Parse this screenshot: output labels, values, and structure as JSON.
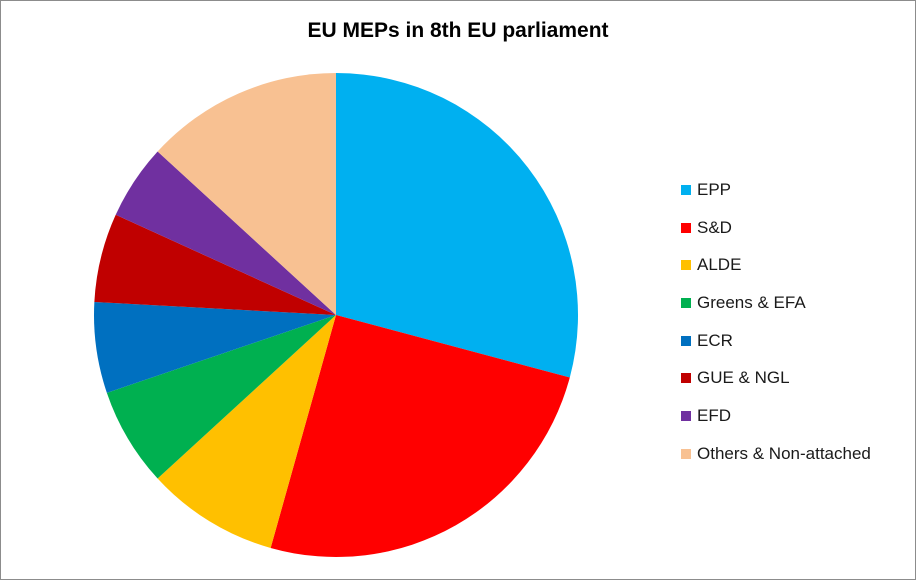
{
  "chart_data": {
    "type": "pie",
    "title": "EU MEPs in 8th EU parliament",
    "legend_position": "right",
    "slices": [
      {
        "label": "EPP",
        "value": 221,
        "color": "#00b0f0"
      },
      {
        "label": "S&D",
        "value": 191,
        "color": "#ff0000"
      },
      {
        "label": "ALDE",
        "value": 67,
        "color": "#ffc000"
      },
      {
        "label": "Greens & EFA",
        "value": 50,
        "color": "#00b050"
      },
      {
        "label": "ECR",
        "value": 46,
        "color": "#0070c0"
      },
      {
        "label": "GUE & NGL",
        "value": 45,
        "color": "#c00000"
      },
      {
        "label": "EFD",
        "value": 38,
        "color": "#7030a0"
      },
      {
        "label": "Others & Non-attached",
        "value": 100,
        "color": "#f8c192"
      }
    ]
  }
}
